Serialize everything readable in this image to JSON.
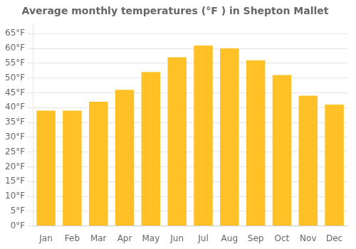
{
  "chart_data": {
    "type": "bar",
    "title": "Average monthly temperatures (°F ) in Shepton Mallet",
    "categories": [
      "Jan",
      "Feb",
      "Mar",
      "Apr",
      "May",
      "Jun",
      "Jul",
      "Aug",
      "Sep",
      "Oct",
      "Nov",
      "Dec"
    ],
    "values": [
      39,
      39,
      42,
      46,
      52,
      57,
      61,
      60,
      56,
      51,
      44,
      41
    ],
    "color": "#FFC125",
    "ylim": [
      0,
      68
    ],
    "yticks": [
      {
        "value": 0,
        "label": "0°F"
      },
      {
        "value": 5,
        "label": "5°F"
      },
      {
        "value": 10,
        "label": "10°F"
      },
      {
        "value": 15,
        "label": "15°F"
      },
      {
        "value": 20,
        "label": "20°F"
      },
      {
        "value": 25,
        "label": "25°F"
      },
      {
        "value": 30,
        "label": "30°F"
      },
      {
        "value": 35,
        "label": "35°F"
      },
      {
        "value": 40,
        "label": "40°F"
      },
      {
        "value": 45,
        "label": "45°F"
      },
      {
        "value": 50,
        "label": "50°F"
      },
      {
        "value": 55,
        "label": "55°F"
      },
      {
        "value": 60,
        "label": "60°F"
      },
      {
        "value": 65,
        "label": "65°F"
      }
    ],
    "grid": true
  }
}
